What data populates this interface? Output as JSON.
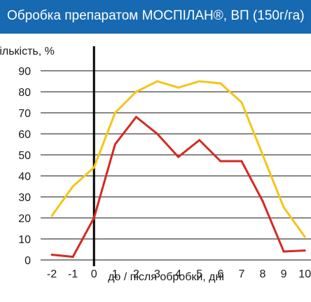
{
  "chart_data": {
    "type": "line",
    "title": "Обробка препаратом МОСПІЛАН®, ВП (150г/га)",
    "ylabel": "Кількість, %",
    "xlabel": "до / після обробки, дні",
    "x": [
      -2,
      -1,
      0,
      1,
      2,
      3,
      4,
      5,
      6,
      7,
      8,
      9,
      10
    ],
    "xticks": [
      "-2",
      "-1",
      "0",
      "1",
      "2",
      "3",
      "4",
      "5",
      "6",
      "7",
      "8",
      "9",
      "10"
    ],
    "yticks": [
      "0",
      "10",
      "20",
      "30",
      "40",
      "50",
      "60",
      "70",
      "80",
      "90"
    ],
    "ylim": [
      0,
      90
    ],
    "grid": true,
    "series": [
      {
        "color": "#f5c518",
        "values": [
          21,
          35,
          44,
          70,
          80,
          85,
          82,
          85,
          84,
          75,
          50,
          25,
          11
        ]
      },
      {
        "color": "#d42a23",
        "values": [
          2.5,
          1.5,
          20,
          55,
          68,
          60,
          49,
          57,
          47,
          47,
          28,
          4,
          4.5
        ]
      }
    ]
  }
}
